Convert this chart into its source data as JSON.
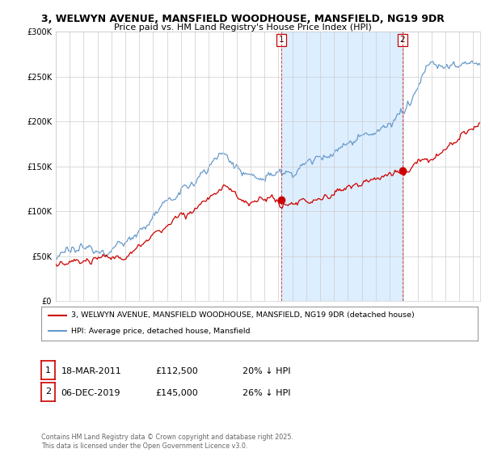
{
  "title_line1": "3, WELWYN AVENUE, MANSFIELD WOODHOUSE, MANSFIELD, NG19 9DR",
  "title_line2": "Price paid vs. HM Land Registry's House Price Index (HPI)",
  "legend_label_red": "3, WELWYN AVENUE, MANSFIELD WOODHOUSE, MANSFIELD, NG19 9DR (detached house)",
  "legend_label_blue": "HPI: Average price, detached house, Mansfield",
  "annotation1_date": "18-MAR-2011",
  "annotation1_price": "£112,500",
  "annotation1_hpi": "20% ↓ HPI",
  "annotation2_date": "06-DEC-2019",
  "annotation2_price": "£145,000",
  "annotation2_hpi": "26% ↓ HPI",
  "copyright": "Contains HM Land Registry data © Crown copyright and database right 2025.\nThis data is licensed under the Open Government Licence v3.0.",
  "red_color": "#cc0000",
  "blue_color": "#6699cc",
  "shade_color": "#ddeeff",
  "background_color": "#ffffff",
  "grid_color": "#cccccc",
  "ylim": [
    0,
    300000
  ],
  "xlim_start": 1995,
  "xlim_end": 2025.5,
  "sale1_t": 2011.2,
  "sale1_v": 112500,
  "sale2_t": 2019.92,
  "sale2_v": 145000
}
